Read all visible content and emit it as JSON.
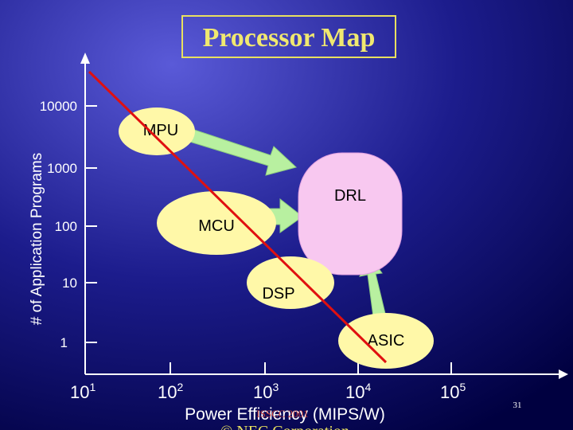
{
  "title": "Processor Map",
  "y_axis": {
    "label": "# of Application Programs",
    "ticks": [
      "10000",
      "1000",
      "100",
      "10",
      "1"
    ]
  },
  "x_axis": {
    "label": "Power Efficiency (MIPS/W)",
    "ticks": [
      {
        "base": "10",
        "exp": "1"
      },
      {
        "base": "10",
        "exp": "2"
      },
      {
        "base": "10",
        "exp": "3"
      },
      {
        "base": "10",
        "exp": "4"
      },
      {
        "base": "10",
        "exp": "5"
      }
    ]
  },
  "regions": [
    "MPU",
    "MCU",
    "DSP",
    "ASIC",
    "DRL"
  ],
  "conference": "ISSCC 2001",
  "page_number": "31",
  "footer": "© NEC Corporation"
}
